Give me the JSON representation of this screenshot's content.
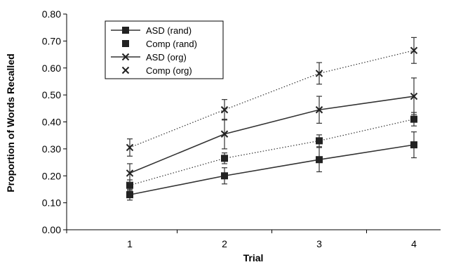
{
  "chart_data": {
    "type": "line",
    "title": "",
    "xlabel": "Trial",
    "ylabel": "Proportion of Words Recalled",
    "categories": [
      "1",
      "2",
      "3",
      "4"
    ],
    "x": [
      1,
      2,
      3,
      4
    ],
    "ylim": [
      0,
      0.8
    ],
    "yticks": [
      "0.00",
      "0.10",
      "0.20",
      "0.30",
      "0.40",
      "0.50",
      "0.60",
      "0.70",
      "0.80"
    ],
    "grid": false,
    "legend_position": "top-left",
    "series": [
      {
        "name": "ASD (rand)",
        "marker": "square",
        "line": "solid",
        "values": [
          0.13,
          0.2,
          0.26,
          0.315
        ],
        "error": [
          0.02,
          0.03,
          0.045,
          0.048
        ]
      },
      {
        "name": "Comp (rand)",
        "marker": "square",
        "line": "dotted",
        "values": [
          0.165,
          0.265,
          0.33,
          0.41
        ],
        "error": [
          0.02,
          0.02,
          0.022,
          0.025
        ]
      },
      {
        "name": "ASD (org)",
        "marker": "x",
        "line": "solid",
        "values": [
          0.21,
          0.355,
          0.445,
          0.495
        ],
        "error": [
          0.035,
          0.055,
          0.05,
          0.068
        ]
      },
      {
        "name": "Comp (org)",
        "marker": "x",
        "line": "dotted",
        "values": [
          0.305,
          0.445,
          0.58,
          0.665
        ],
        "error": [
          0.032,
          0.038,
          0.04,
          0.048
        ]
      }
    ]
  }
}
